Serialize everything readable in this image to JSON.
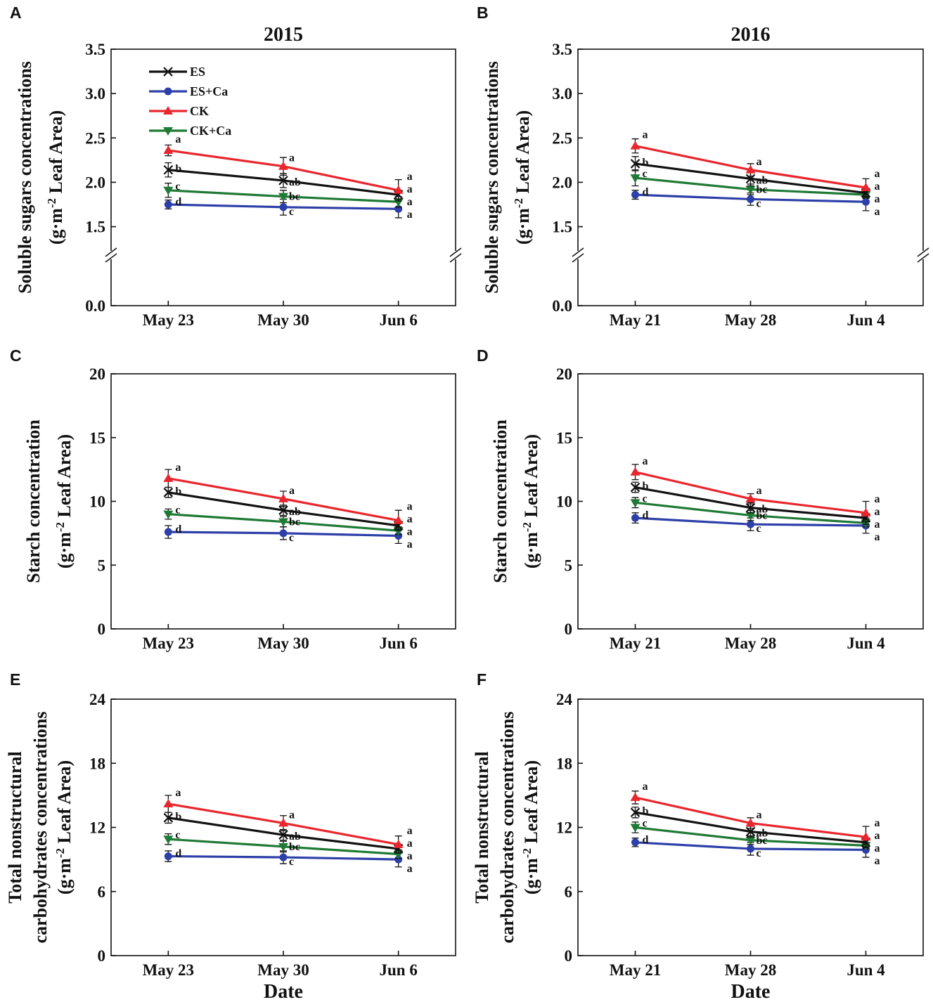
{
  "figure": {
    "x_axis_label": "Date",
    "colors": {
      "ES": "#111111",
      "ES+Ca": "#2d3fa8",
      "CK": "#e8262d",
      "CK+Ca": "#1f7a35"
    },
    "legend": [
      {
        "label": "ES",
        "marker": "x"
      },
      {
        "label": "ES+Ca",
        "marker": "circle"
      },
      {
        "label": "CK",
        "marker": "triangle-up"
      },
      {
        "label": "CK+Ca",
        "marker": "triangle-down"
      }
    ]
  },
  "chart_data": [
    {
      "panel": "A",
      "title": "2015",
      "type": "line",
      "ylabel": [
        "Soluble sugars concentrations",
        "(g·m⁻² Leaf Area)"
      ],
      "categories": [
        "May 23",
        "May 30",
        "Jun 6"
      ],
      "ylim": [
        0,
        3.5
      ],
      "axis_break": true,
      "yticks": [
        "0.0",
        "1.5",
        "2.0",
        "2.5",
        "3.0",
        "3.5"
      ],
      "ytick_values": [
        0,
        1.5,
        2.0,
        2.5,
        3.0,
        3.5
      ],
      "series": [
        {
          "name": "ES",
          "values": [
            2.14,
            2.02,
            1.86
          ],
          "err": [
            0.08,
            0.08,
            0.05
          ],
          "sig": [
            "b",
            "ab",
            "a"
          ]
        },
        {
          "name": "ES+Ca",
          "values": [
            1.75,
            1.72,
            1.7
          ],
          "err": [
            0.05,
            0.09,
            0.1
          ],
          "sig": [
            "d",
            "c",
            "a"
          ]
        },
        {
          "name": "CK",
          "values": [
            2.36,
            2.18,
            1.91
          ],
          "err": [
            0.06,
            0.1,
            0.12
          ],
          "sig": [
            "a",
            "a",
            "a"
          ]
        },
        {
          "name": "CK+Ca",
          "values": [
            1.91,
            1.84,
            1.78
          ],
          "err": [
            0.08,
            0.07,
            0.06
          ],
          "sig": [
            "c",
            "bc",
            "a"
          ]
        }
      ]
    },
    {
      "panel": "B",
      "title": "2016",
      "type": "line",
      "ylabel": [
        "Soluble sugars concentrations",
        "(g·m⁻² Leaf Area)"
      ],
      "categories": [
        "May 21",
        "May 28",
        "Jun 4"
      ],
      "ylim": [
        0,
        3.5
      ],
      "axis_break": true,
      "yticks": [
        "0.0",
        "1.5",
        "2.0",
        "2.5",
        "3.0",
        "3.5"
      ],
      "ytick_values": [
        0,
        1.5,
        2.0,
        2.5,
        3.0,
        3.5
      ],
      "series": [
        {
          "name": "ES",
          "values": [
            2.21,
            2.04,
            1.88
          ],
          "err": [
            0.08,
            0.08,
            0.05
          ],
          "sig": [
            "b",
            "ab",
            "a"
          ]
        },
        {
          "name": "ES+Ca",
          "values": [
            1.86,
            1.81,
            1.78
          ],
          "err": [
            0.05,
            0.07,
            0.1
          ],
          "sig": [
            "d",
            "c",
            "a"
          ]
        },
        {
          "name": "CK",
          "values": [
            2.41,
            2.14,
            1.94
          ],
          "err": [
            0.08,
            0.07,
            0.1
          ],
          "sig": [
            "a",
            "a",
            "a"
          ]
        },
        {
          "name": "CK+Ca",
          "values": [
            2.05,
            1.92,
            1.86
          ],
          "err": [
            0.09,
            0.06,
            0.04
          ],
          "sig": [
            "c",
            "bc",
            "a"
          ]
        }
      ]
    },
    {
      "panel": "C",
      "title": "",
      "type": "line",
      "ylabel": [
        "Starch concentration",
        "(g·m⁻² Leaf Area)"
      ],
      "categories": [
        "May 23",
        "May 30",
        "Jun 6"
      ],
      "ylim": [
        0,
        20
      ],
      "axis_break": false,
      "yticks": [
        "0",
        "5",
        "10",
        "15",
        "20"
      ],
      "ytick_values": [
        0,
        5,
        10,
        15,
        20
      ],
      "series": [
        {
          "name": "ES",
          "values": [
            10.7,
            9.3,
            8.1
          ],
          "err": [
            0.4,
            0.4,
            0.3
          ],
          "sig": [
            "b",
            "ab",
            "a"
          ]
        },
        {
          "name": "ES+Ca",
          "values": [
            7.6,
            7.5,
            7.3
          ],
          "err": [
            0.5,
            0.5,
            0.6
          ],
          "sig": [
            "d",
            "c",
            "a"
          ]
        },
        {
          "name": "CK",
          "values": [
            11.8,
            10.2,
            8.5
          ],
          "err": [
            0.7,
            0.6,
            0.8
          ],
          "sig": [
            "a",
            "a",
            "a"
          ]
        },
        {
          "name": "CK+Ca",
          "values": [
            9.0,
            8.4,
            7.7
          ],
          "err": [
            0.4,
            0.4,
            0.3
          ],
          "sig": [
            "c",
            "bc",
            "a"
          ]
        }
      ]
    },
    {
      "panel": "D",
      "title": "",
      "type": "line",
      "ylabel": [
        "Starch concentration",
        "(g·m⁻² Leaf Area)"
      ],
      "categories": [
        "May 21",
        "May 28",
        "Jun 4"
      ],
      "ylim": [
        0,
        20
      ],
      "axis_break": false,
      "yticks": [
        "0",
        "5",
        "10",
        "15",
        "20"
      ],
      "ytick_values": [
        0,
        5,
        10,
        15,
        20
      ],
      "series": [
        {
          "name": "ES",
          "values": [
            11.1,
            9.5,
            8.7
          ],
          "err": [
            0.4,
            0.4,
            0.3
          ],
          "sig": [
            "b",
            "ab",
            "a"
          ]
        },
        {
          "name": "ES+Ca",
          "values": [
            8.7,
            8.2,
            8.1
          ],
          "err": [
            0.4,
            0.5,
            0.6
          ],
          "sig": [
            "d",
            "c",
            "a"
          ]
        },
        {
          "name": "CK",
          "values": [
            12.3,
            10.2,
            9.1
          ],
          "err": [
            0.6,
            0.4,
            0.9
          ],
          "sig": [
            "a",
            "a",
            "a"
          ]
        },
        {
          "name": "CK+Ca",
          "values": [
            9.9,
            8.9,
            8.3
          ],
          "err": [
            0.4,
            0.4,
            0.3
          ],
          "sig": [
            "c",
            "bc",
            "a"
          ]
        }
      ]
    },
    {
      "panel": "E",
      "title": "",
      "type": "line",
      "ylabel": [
        "Total nonstructural",
        "carbohydrates concentrations",
        "(g·m⁻² Leaf Area)"
      ],
      "categories": [
        "May 23",
        "May 30",
        "Jun 6"
      ],
      "ylim": [
        0,
        24
      ],
      "axis_break": false,
      "yticks": [
        "0",
        "6",
        "12",
        "18",
        "24"
      ],
      "ytick_values": [
        0,
        6,
        12,
        18,
        24
      ],
      "series": [
        {
          "name": "ES",
          "values": [
            12.9,
            11.3,
            10.0
          ],
          "err": [
            0.5,
            0.5,
            0.4
          ],
          "sig": [
            "b",
            "ab",
            "a"
          ]
        },
        {
          "name": "ES+Ca",
          "values": [
            9.3,
            9.2,
            9.0
          ],
          "err": [
            0.5,
            0.6,
            0.7
          ],
          "sig": [
            "d",
            "c",
            "a"
          ]
        },
        {
          "name": "CK",
          "values": [
            14.2,
            12.4,
            10.4
          ],
          "err": [
            0.8,
            0.7,
            0.8
          ],
          "sig": [
            "a",
            "a",
            "a"
          ]
        },
        {
          "name": "CK+Ca",
          "values": [
            10.9,
            10.2,
            9.5
          ],
          "err": [
            0.5,
            0.5,
            0.4
          ],
          "sig": [
            "c",
            "bc",
            "a"
          ]
        }
      ]
    },
    {
      "panel": "F",
      "title": "",
      "type": "line",
      "ylabel": [
        "Total nonstructural",
        "carbohydrates concentrations",
        "(g·m⁻² Leaf Area)"
      ],
      "categories": [
        "May 21",
        "May 28",
        "Jun 4"
      ],
      "ylim": [
        0,
        24
      ],
      "axis_break": false,
      "yticks": [
        "0",
        "6",
        "12",
        "18",
        "24"
      ],
      "ytick_values": [
        0,
        6,
        12,
        18,
        24
      ],
      "series": [
        {
          "name": "ES",
          "values": [
            13.4,
            11.6,
            10.6
          ],
          "err": [
            0.5,
            0.5,
            0.4
          ],
          "sig": [
            "b",
            "ab",
            "a"
          ]
        },
        {
          "name": "ES+Ca",
          "values": [
            10.6,
            10.0,
            9.9
          ],
          "err": [
            0.4,
            0.6,
            0.7
          ],
          "sig": [
            "d",
            "c",
            "a"
          ]
        },
        {
          "name": "CK",
          "values": [
            14.8,
            12.4,
            11.1
          ],
          "err": [
            0.6,
            0.5,
            1.0
          ],
          "sig": [
            "a",
            "a",
            "a"
          ]
        },
        {
          "name": "CK+Ca",
          "values": [
            12.0,
            10.8,
            10.3
          ],
          "err": [
            0.5,
            0.4,
            0.3
          ],
          "sig": [
            "c",
            "bc",
            "a"
          ]
        }
      ]
    }
  ]
}
